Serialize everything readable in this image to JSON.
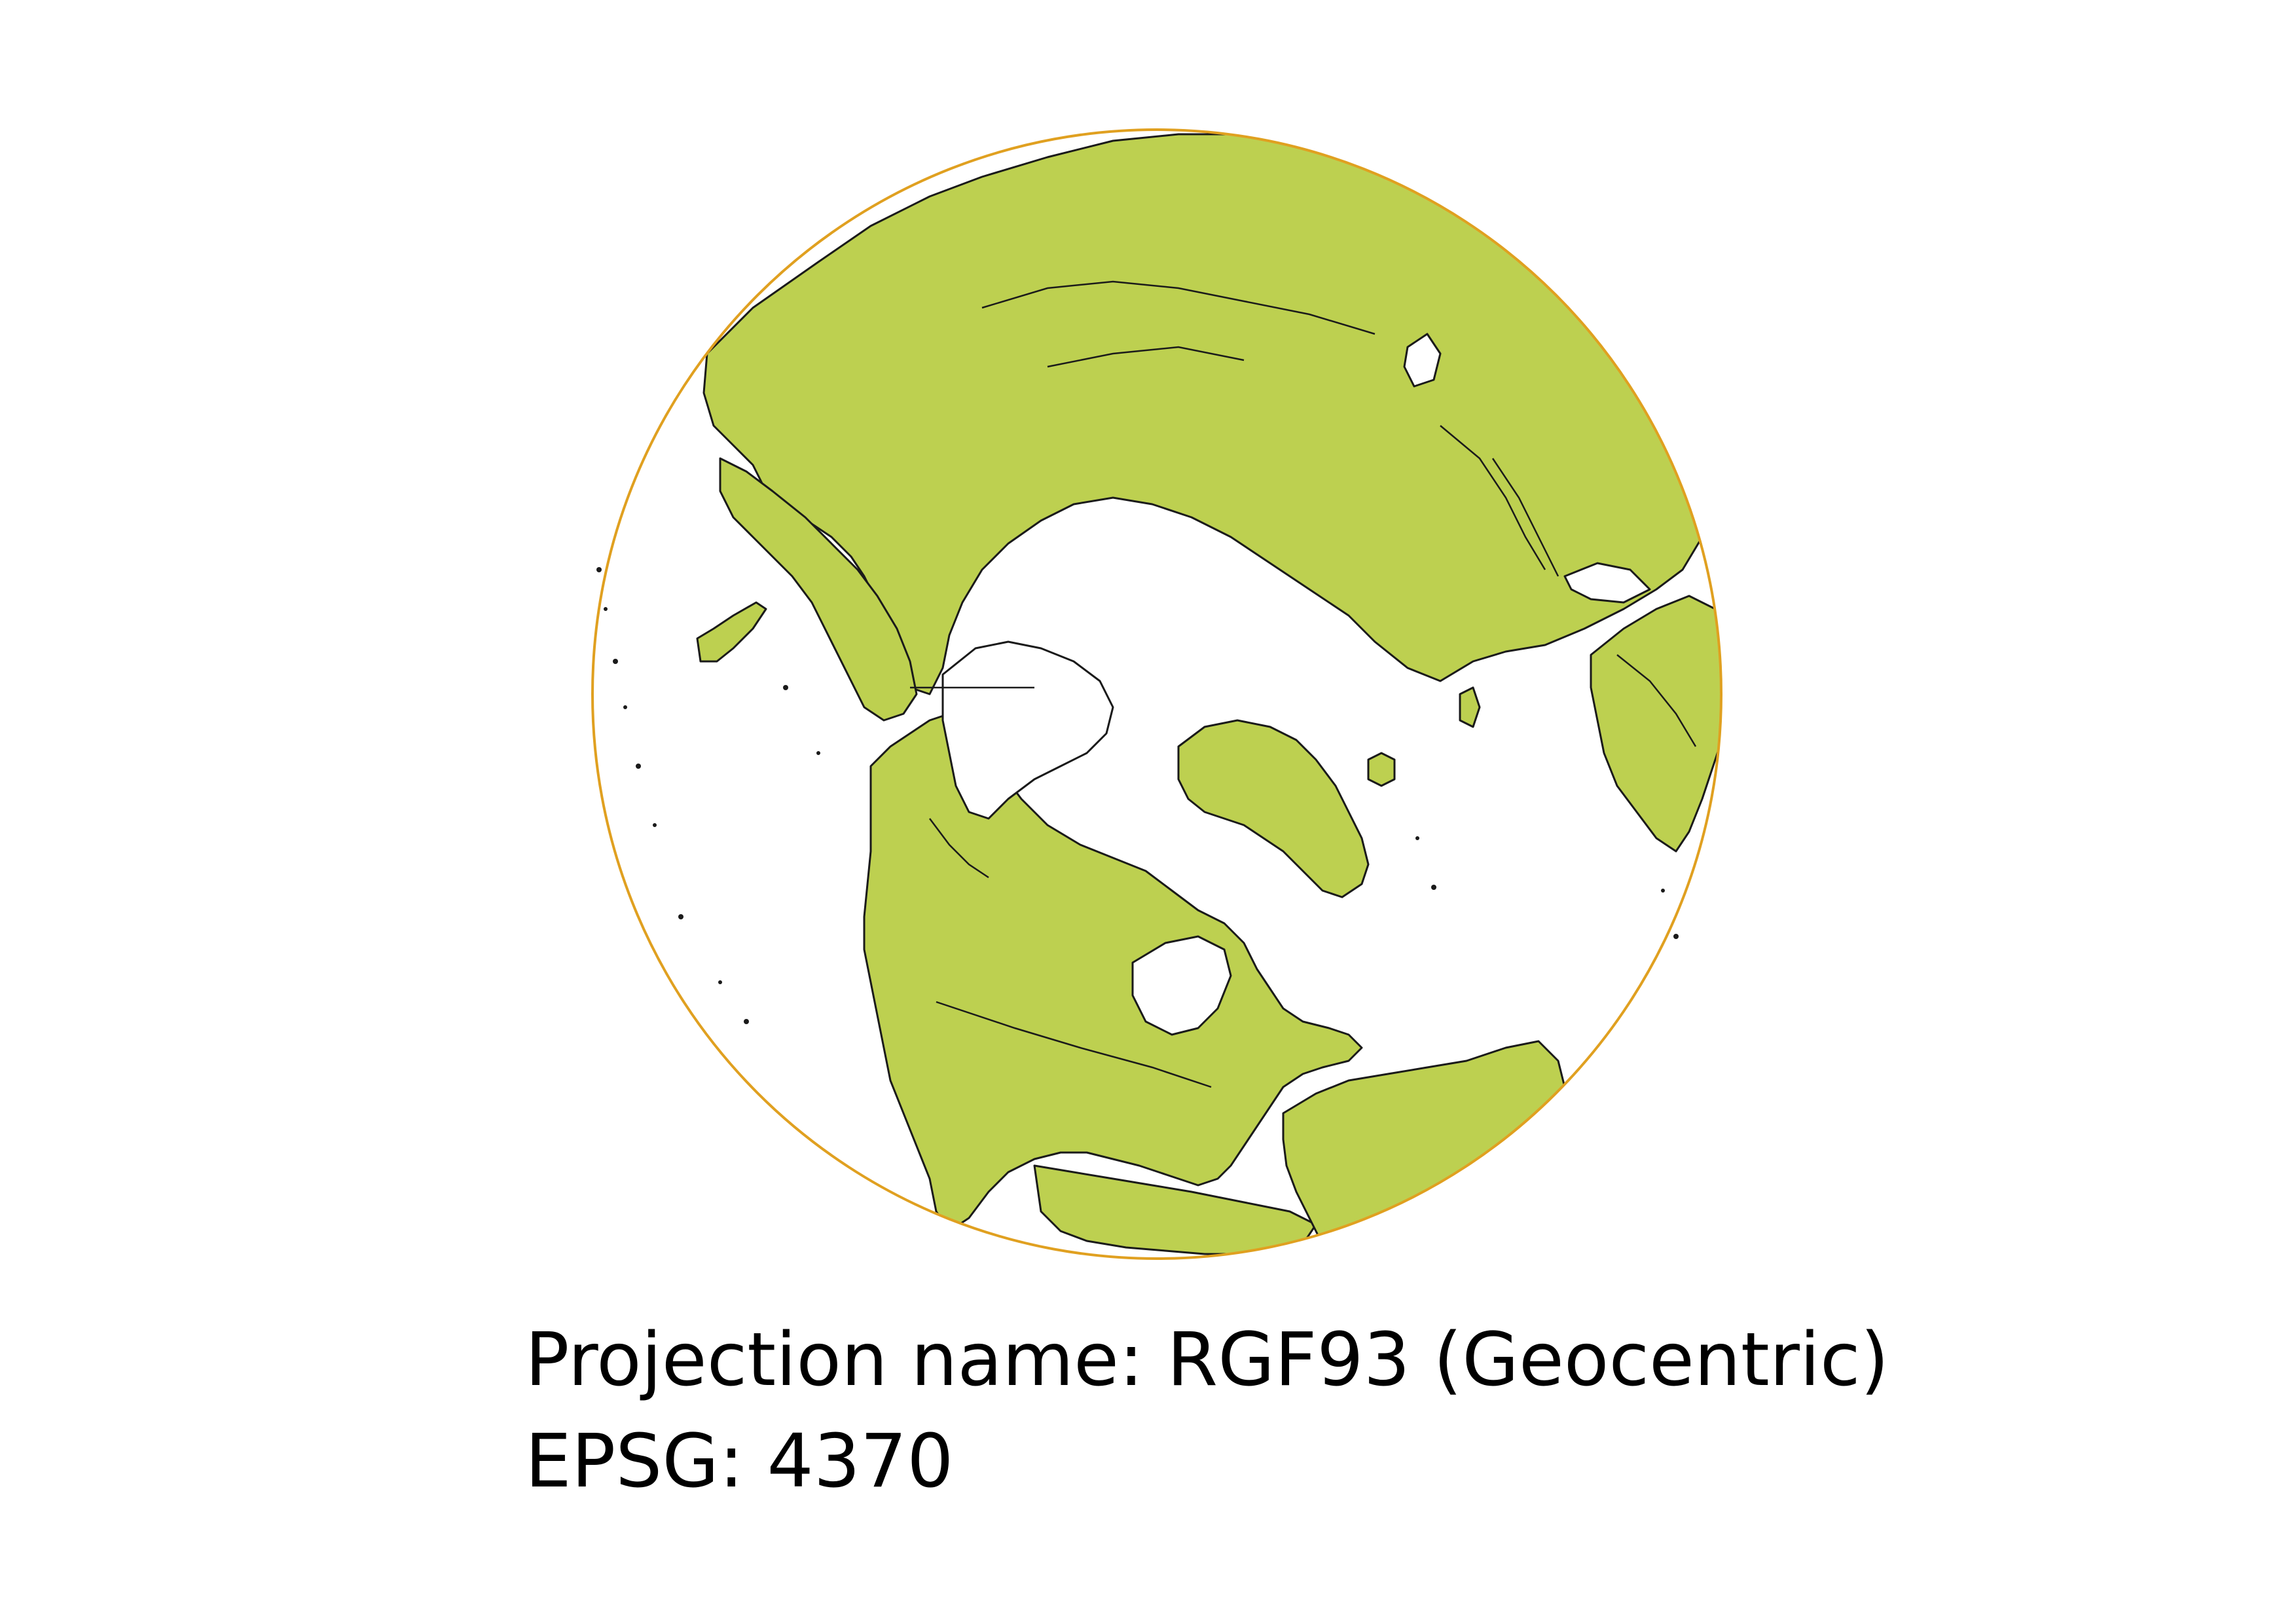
{
  "map": {
    "land_color": "#bdd050",
    "ocean_color": "#ffffff",
    "outline_color": "#1a1a1a",
    "globe_edge_color": "#e0a020",
    "projection_view": "orthographic globe centered over the North Pole region, Americas at bottom, Eurasia at top"
  },
  "caption": {
    "projection_line": "Projection name: RGF93 (Geocentric)",
    "epsg_line": "EPSG: 4370"
  }
}
